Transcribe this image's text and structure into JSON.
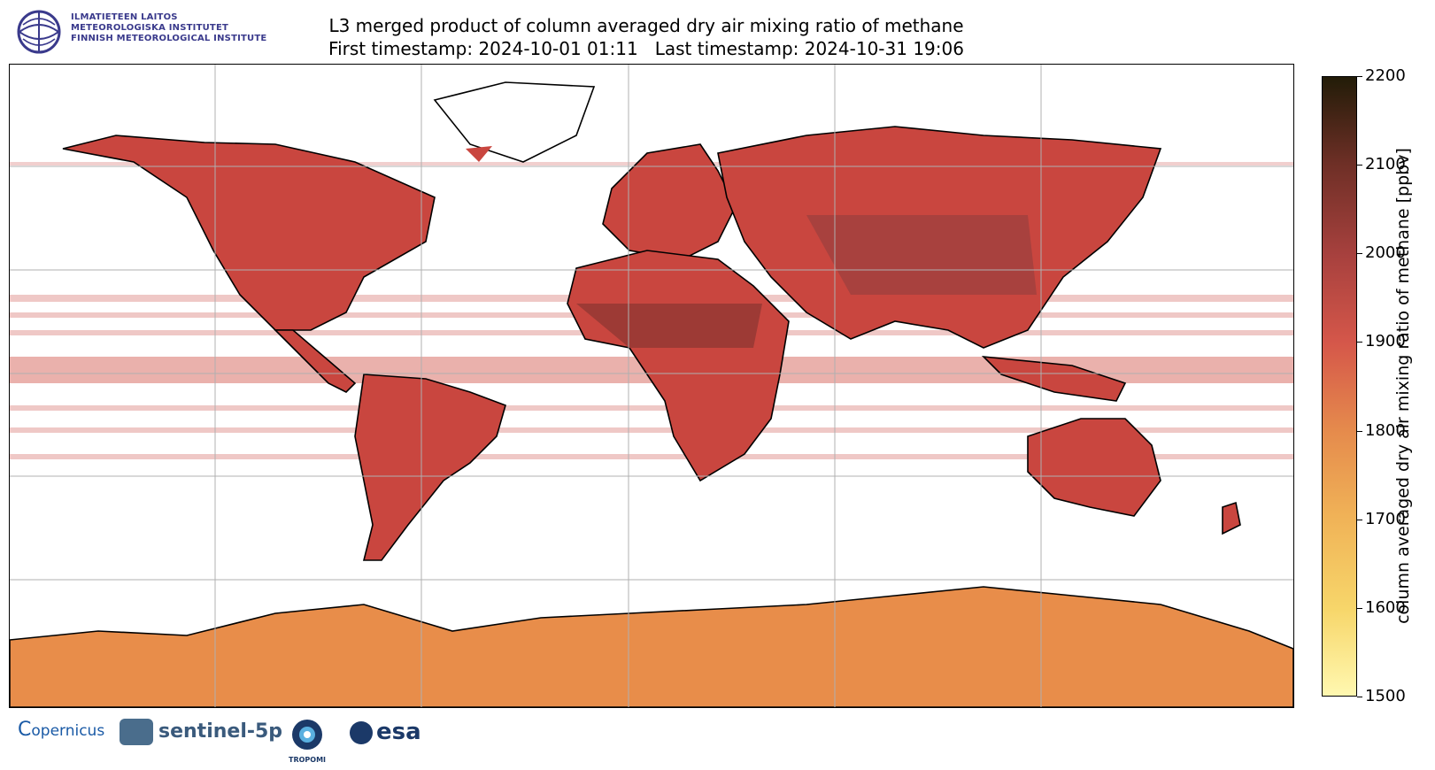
{
  "header": {
    "institute_lines": [
      "ILMATIETEEN LAITOS",
      "METEOROLOGISKA INSTITUTET",
      "FINNISH METEOROLOGICAL INSTITUTE"
    ],
    "title_line1": "L3 merged product of column averaged dry air mixing ratio of methane",
    "title_line2": "First timestamp: 2024-10-01 01:11   Last timestamp: 2024-10-31 19:06"
  },
  "colorbar": {
    "label": "column averaged dry air mixing ratio of methane [ppbv]",
    "min": 1500,
    "max": 2200,
    "ticks": [
      "1500",
      "1600",
      "1700",
      "1800",
      "1900",
      "2000",
      "2100",
      "2200"
    ]
  },
  "map": {
    "projection": "Plate Carrée (world)",
    "gridlines": true,
    "data_color": "#c9463f",
    "antarctica_color": "#e88d4a",
    "coastline_color": "#000000"
  },
  "footer": {
    "logos": [
      "copernicus",
      "sentinel-5p",
      "TROPOMI",
      "esa"
    ],
    "copernicus_label": "opernicus",
    "sentinel_label": "sentinel-5p",
    "tropomi_label": "TROPOMI",
    "esa_label": "esa"
  }
}
